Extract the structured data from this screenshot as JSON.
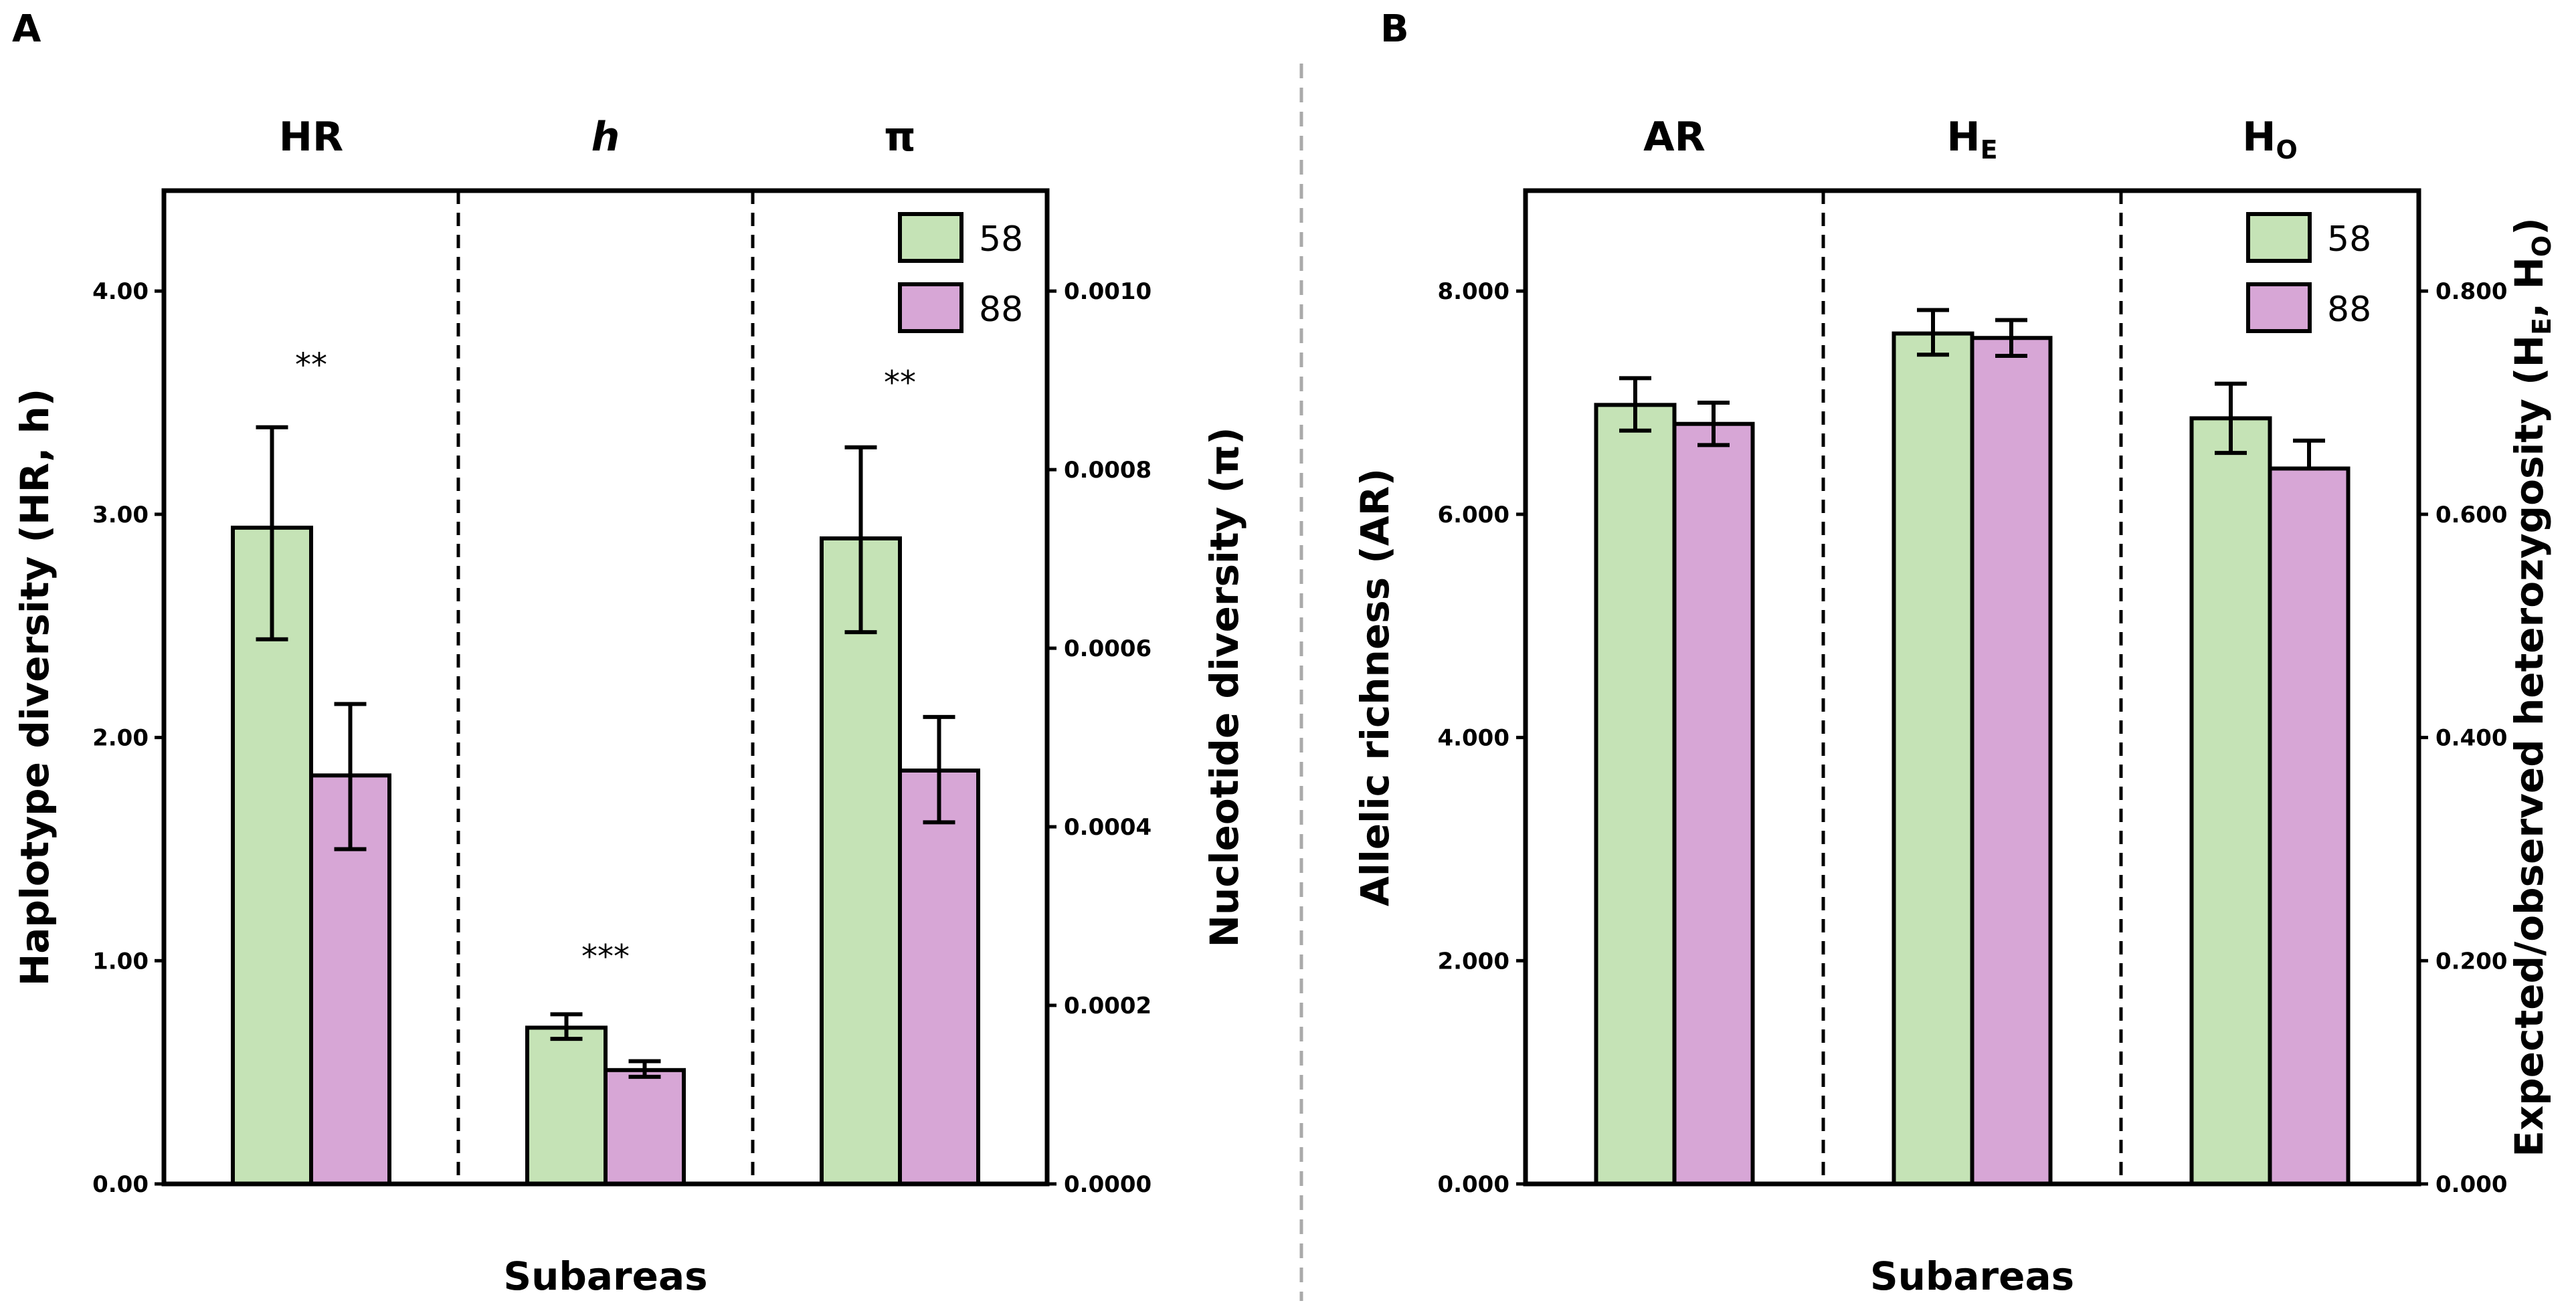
{
  "colors": {
    "series_58": "#c5e3b6",
    "series_88": "#d7a6d6",
    "outline": "#000000",
    "divider": "#aaaaaa"
  },
  "chart_data": [
    {
      "type": "bar",
      "panel_label": "A",
      "groups": [
        {
          "name": "HR",
          "italic": false,
          "axis": "left"
        },
        {
          "name": "h",
          "italic": true,
          "axis": "left"
        },
        {
          "name": "π",
          "italic": false,
          "axis": "right"
        }
      ],
      "series": [
        {
          "name": "58",
          "values": [
            2.94,
            0.7,
            0.000723
          ],
          "errors_low": [
            2.44,
            0.65,
            0.000618
          ],
          "errors_high": [
            3.39,
            0.76,
            0.000825
          ]
        },
        {
          "name": "88",
          "values": [
            1.83,
            0.51,
            0.000463
          ],
          "errors_low": [
            1.5,
            0.48,
            0.000405
          ],
          "errors_high": [
            2.15,
            0.55,
            0.000523
          ]
        }
      ],
      "annotations": [
        {
          "group": 0,
          "text": "**",
          "y": 3.62,
          "axis": "left"
        },
        {
          "group": 1,
          "text": "***",
          "y": 0.97,
          "axis": "left"
        },
        {
          "group": 2,
          "text": "**",
          "y": 0.000885,
          "axis": "right"
        }
      ],
      "left_axis": {
        "label": "Haplotype diversity (HR, h)",
        "ylim": [
          0,
          4.45
        ],
        "ticks": [
          0,
          1,
          2,
          3,
          4
        ],
        "tick_labels": [
          "0.00",
          "1.00",
          "2.00",
          "3.00",
          "4.00"
        ]
      },
      "right_axis": {
        "label": "Nucleotide diversity (π)",
        "ylim": [
          0,
          0.0011125
        ],
        "ticks": [
          0,
          0.0002,
          0.0004,
          0.0006,
          0.0008,
          0.001
        ],
        "tick_labels": [
          "0.0000",
          "0.0002",
          "0.0004",
          "0.0006",
          "0.0008",
          "0.0010"
        ]
      },
      "xlabel": "Subareas",
      "legend": {
        "position": "top-right",
        "entries": [
          "58",
          "88"
        ]
      }
    },
    {
      "type": "bar",
      "panel_label": "B",
      "groups": [
        {
          "name": "AR",
          "sub": "",
          "axis": "left"
        },
        {
          "name": "H",
          "sub": "E",
          "axis": "right"
        },
        {
          "name": "H",
          "sub": "O",
          "axis": "right"
        }
      ],
      "series": [
        {
          "name": "58",
          "values": [
            6.98,
            0.762,
            0.686
          ],
          "errors_low": [
            6.75,
            0.743,
            0.655
          ],
          "errors_high": [
            7.22,
            0.783,
            0.717
          ]
        },
        {
          "name": "88",
          "values": [
            6.81,
            0.758,
            0.641
          ],
          "errors_low": [
            6.62,
            0.742,
            0.641
          ],
          "errors_high": [
            7.0,
            0.774,
            0.666
          ]
        }
      ],
      "left_axis": {
        "label": "Allelic richness (AR)",
        "ylim": [
          0,
          8.9
        ],
        "ticks": [
          0,
          2,
          4,
          6,
          8
        ],
        "tick_labels": [
          "0.000",
          "2.000",
          "4.000",
          "6.000",
          "8.000"
        ]
      },
      "right_axis": {
        "label": "Expected/observed heterozygosity (H",
        "label_sub_e": "E",
        "label_sep": ", H",
        "label_sub_o": "O",
        "label_end": ")",
        "ylim": [
          0,
          0.89
        ],
        "ticks": [
          0,
          0.2,
          0.4,
          0.6,
          0.8
        ],
        "tick_labels": [
          "0.000",
          "0.200",
          "0.400",
          "0.600",
          "0.800"
        ]
      },
      "xlabel": "Subareas",
      "legend": {
        "position": "top-right",
        "entries": [
          "58",
          "88"
        ]
      }
    }
  ]
}
